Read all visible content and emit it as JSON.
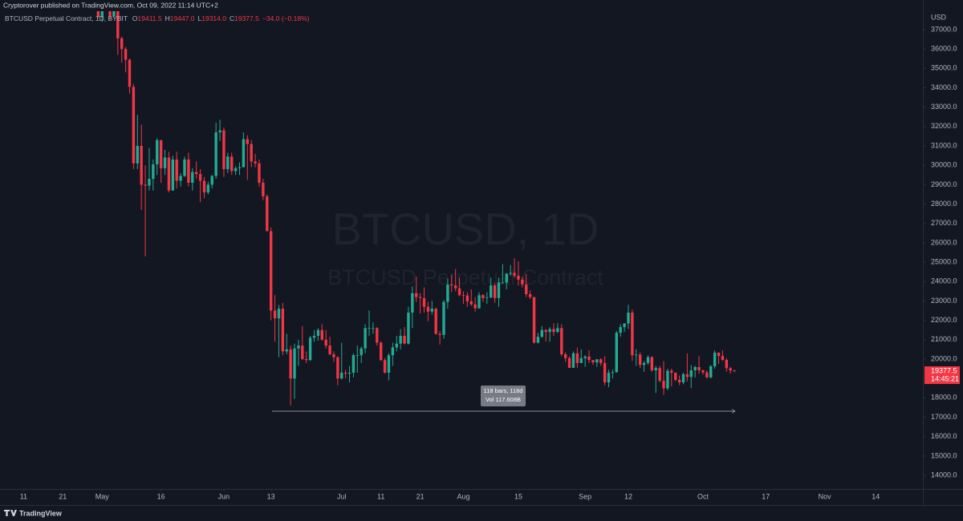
{
  "header": "Cryptorover published on TradingView.com, Oct 09, 2022 11:14 UTC+2",
  "footer": "TradingView",
  "chart_data": {
    "type": "candlestick",
    "legend": {
      "symbol": "BTCUSD Perpetual Contract, 1D, BYBIT",
      "o_label": "O",
      "o": "19411.5",
      "h_label": "H",
      "h": "19447.0",
      "l_label": "L",
      "l": "19314.0",
      "c_label": "C",
      "c": "19377.5",
      "change": "−34.0 (−0.18%)"
    },
    "watermark": [
      "BTCUSD, 1D",
      "BTCUSD Perpetual Contract"
    ],
    "currency": "USD",
    "price_time": "14:45:21",
    "measure": [
      "118 bars, 118d",
      "Vol 117.608B"
    ],
    "up_color": "#22ab94",
    "down_color": "#f23645",
    "grid": false,
    "xlim": [
      "2022-04-05",
      "2022-11-26"
    ],
    "ylim": [
      13300,
      37950
    ],
    "xticks": [
      {
        "value": "2022-04-11",
        "label": "11"
      },
      {
        "value": "2022-04-21",
        "label": "21"
      },
      {
        "value": "2022-05-01",
        "label": "May"
      },
      {
        "value": "2022-05-16",
        "label": "16"
      },
      {
        "value": "2022-06-01",
        "label": "Jun"
      },
      {
        "value": "2022-06-13",
        "label": "13"
      },
      {
        "value": "2022-07-01",
        "label": "Jul"
      },
      {
        "value": "2022-07-11",
        "label": "11"
      },
      {
        "value": "2022-07-21",
        "label": "21"
      },
      {
        "value": "2022-08-01",
        "label": "Aug"
      },
      {
        "value": "2022-08-15",
        "label": "15"
      },
      {
        "value": "2022-09-01",
        "label": "Sep"
      },
      {
        "value": "2022-09-12",
        "label": "12"
      },
      {
        "value": "2022-10-01",
        "label": "Oct"
      },
      {
        "value": "2022-10-17",
        "label": "17"
      },
      {
        "value": "2022-11-01",
        "label": "Nov"
      },
      {
        "value": "2022-11-14",
        "label": "14"
      }
    ],
    "yticks": [
      {
        "value": 14000,
        "label": "14000.0"
      },
      {
        "value": 15000,
        "label": "15000.0"
      },
      {
        "value": 16000,
        "label": "16000.0"
      },
      {
        "value": 17000,
        "label": "17000.0"
      },
      {
        "value": 18000,
        "label": "18000.0"
      },
      {
        "value": 19000,
        "label": "19000.0"
      },
      {
        "value": 20000,
        "label": "20000.0"
      },
      {
        "value": 21000,
        "label": "21000.0"
      },
      {
        "value": 22000,
        "label": "22000.0"
      },
      {
        "value": 23000,
        "label": "23000.0"
      },
      {
        "value": 24000,
        "label": "24000.0"
      },
      {
        "value": 25000,
        "label": "25000.0"
      },
      {
        "value": 26000,
        "label": "26000.0"
      },
      {
        "value": 27000,
        "label": "27000.0"
      },
      {
        "value": 28000,
        "label": "28000.0"
      },
      {
        "value": 29000,
        "label": "29000.0"
      },
      {
        "value": 30000,
        "label": "30000.0"
      },
      {
        "value": 31000,
        "label": "31000.0"
      },
      {
        "value": 32000,
        "label": "32000.0"
      },
      {
        "value": 33000,
        "label": "33000.0"
      },
      {
        "value": 34000,
        "label": "34000.0"
      },
      {
        "value": 35000,
        "label": "35000.0"
      },
      {
        "value": 36000,
        "label": "36000.0"
      },
      {
        "value": 37000,
        "label": "37000.0"
      }
    ],
    "x": [
      "2022-04-28",
      "2022-04-29",
      "2022-04-30",
      "2022-05-01",
      "2022-05-02",
      "2022-05-03",
      "2022-05-04",
      "2022-05-05",
      "2022-05-06",
      "2022-05-07",
      "2022-05-08",
      "2022-05-09",
      "2022-05-10",
      "2022-05-11",
      "2022-05-12",
      "2022-05-13",
      "2022-05-14",
      "2022-05-15",
      "2022-05-16",
      "2022-05-17",
      "2022-05-18",
      "2022-05-19",
      "2022-05-20",
      "2022-05-21",
      "2022-05-22",
      "2022-05-23",
      "2022-05-24",
      "2022-05-25",
      "2022-05-26",
      "2022-05-27",
      "2022-05-28",
      "2022-05-29",
      "2022-05-30",
      "2022-05-31",
      "2022-06-01",
      "2022-06-02",
      "2022-06-03",
      "2022-06-04",
      "2022-06-05",
      "2022-06-06",
      "2022-06-07",
      "2022-06-08",
      "2022-06-09",
      "2022-06-10",
      "2022-06-11",
      "2022-06-12",
      "2022-06-13",
      "2022-06-14",
      "2022-06-15",
      "2022-06-16",
      "2022-06-17",
      "2022-06-18",
      "2022-06-19",
      "2022-06-20",
      "2022-06-21",
      "2022-06-22",
      "2022-06-23",
      "2022-06-24",
      "2022-06-25",
      "2022-06-26",
      "2022-06-27",
      "2022-06-28",
      "2022-06-29",
      "2022-06-30",
      "2022-07-01",
      "2022-07-02",
      "2022-07-03",
      "2022-07-04",
      "2022-07-05",
      "2022-07-06",
      "2022-07-07",
      "2022-07-08",
      "2022-07-09",
      "2022-07-10",
      "2022-07-11",
      "2022-07-12",
      "2022-07-13",
      "2022-07-14",
      "2022-07-15",
      "2022-07-16",
      "2022-07-17",
      "2022-07-18",
      "2022-07-19",
      "2022-07-20",
      "2022-07-21",
      "2022-07-22",
      "2022-07-23",
      "2022-07-24",
      "2022-07-25",
      "2022-07-26",
      "2022-07-27",
      "2022-07-28",
      "2022-07-29",
      "2022-07-30",
      "2022-07-31",
      "2022-08-01",
      "2022-08-02",
      "2022-08-03",
      "2022-08-04",
      "2022-08-05",
      "2022-08-06",
      "2022-08-07",
      "2022-08-08",
      "2022-08-09",
      "2022-08-10",
      "2022-08-11",
      "2022-08-12",
      "2022-08-13",
      "2022-08-14",
      "2022-08-15",
      "2022-08-16",
      "2022-08-17",
      "2022-08-18",
      "2022-08-19",
      "2022-08-20",
      "2022-08-21",
      "2022-08-22",
      "2022-08-23",
      "2022-08-24",
      "2022-08-25",
      "2022-08-26",
      "2022-08-27",
      "2022-08-28",
      "2022-08-29",
      "2022-08-30",
      "2022-08-31",
      "2022-09-01",
      "2022-09-02",
      "2022-09-03",
      "2022-09-04",
      "2022-09-05",
      "2022-09-06",
      "2022-09-07",
      "2022-09-08",
      "2022-09-09",
      "2022-09-10",
      "2022-09-11",
      "2022-09-12",
      "2022-09-13",
      "2022-09-14",
      "2022-09-15",
      "2022-09-16",
      "2022-09-17",
      "2022-09-18",
      "2022-09-19",
      "2022-09-20",
      "2022-09-21",
      "2022-09-22",
      "2022-09-23",
      "2022-09-24",
      "2022-09-25",
      "2022-09-26",
      "2022-09-27",
      "2022-09-28",
      "2022-09-29",
      "2022-09-30",
      "2022-10-01",
      "2022-10-02",
      "2022-10-03",
      "2022-10-04",
      "2022-10-05",
      "2022-10-06",
      "2022-10-07",
      "2022-10-08",
      "2022-10-09"
    ],
    "open": [
      39200,
      39700,
      38600,
      37650,
      38450,
      38500,
      37700,
      39700,
      36550,
      36000,
      35450,
      34050,
      30100,
      31000,
      29000,
      28950,
      29300,
      30050,
      31300,
      29850,
      30400,
      28700,
      30300,
      29200,
      29450,
      30300,
      29100,
      29650,
      29550,
      29200,
      28600,
      29000,
      29450,
      31700,
      31800,
      29800,
      30450,
      29700,
      29850,
      29900,
      31350,
      31100,
      30200,
      30100,
      29100,
      28400,
      26600,
      22500,
      22100,
      22600,
      20400,
      20500,
      19000,
      20550,
      20700,
      20000,
      19950,
      21100,
      21200,
      21500,
      21000,
      20700,
      20250,
      20100,
      19000,
      19300,
      19250,
      19300,
      20200,
      20200,
      20550,
      21600,
      21600,
      21600,
      20850,
      19950,
      19300,
      20200,
      20600,
      20800,
      21200,
      20800,
      22400,
      23400,
      23200,
      23150,
      22700,
      22450,
      22600,
      21300,
      21250,
      22950,
      23850,
      23800,
      23650,
      23300,
      23280,
      22980,
      22820,
      22620,
      23300,
      23150,
      23180,
      23800,
      23150,
      23950,
      23950,
      24400,
      24450,
      24300,
      24100,
      23850,
      23350,
      23200,
      20850,
      21150,
      21500,
      21400,
      21550,
      21400,
      21600,
      20250,
      20050,
      19550,
      20300,
      19800,
      20050,
      20130,
      19950,
      19830,
      19990,
      19800,
      18800,
      19290,
      19320,
      21360,
      21650,
      21840,
      22400,
      20200,
      20230,
      19700,
      19800,
      20100,
      19420,
      19540,
      18880,
      18490,
      19400,
      19300,
      18930,
      18800,
      19220,
      19080,
      19420,
      19590,
      19420,
      19310,
      19060,
      19630,
      20330,
      20160,
      19960,
      19530,
      19411.5
    ],
    "high": [
      40300,
      39900,
      38800,
      38700,
      39100,
      38600,
      40000,
      39800,
      36650,
      36100,
      35500,
      34200,
      32600,
      32100,
      30000,
      30900,
      30300,
      31400,
      31300,
      30800,
      30700,
      30500,
      30700,
      29600,
      30450,
      30650,
      29850,
      30200,
      29800,
      29400,
      29150,
      29500,
      32200,
      32350,
      31950,
      30650,
      30650,
      29950,
      30150,
      31700,
      31550,
      31300,
      30600,
      30300,
      29300,
      28500,
      26800,
      23300,
      22800,
      22900,
      21300,
      20700,
      20800,
      21000,
      21700,
      20400,
      21200,
      21500,
      21600,
      21800,
      21500,
      21150,
      20400,
      20150,
      20850,
      19450,
      19650,
      20300,
      20700,
      20650,
      21800,
      22500,
      21900,
      21650,
      20900,
      20050,
      20300,
      20850,
      21200,
      21550,
      21650,
      22700,
      23750,
      24250,
      23400,
      23700,
      22950,
      23000,
      22650,
      21450,
      23050,
      24150,
      24350,
      24650,
      24200,
      23500,
      23450,
      23600,
      23200,
      23450,
      23350,
      23450,
      24200,
      23900,
      24200,
      24900,
      24450,
      24850,
      25200,
      25050,
      24250,
      24400,
      23550,
      23200,
      21350,
      21700,
      21550,
      21650,
      21850,
      21850,
      21800,
      20350,
      20150,
      20400,
      20600,
      20500,
      20200,
      20450,
      19950,
      20000,
      20050,
      20150,
      19450,
      19450,
      21450,
      21800,
      21850,
      22800,
      22550,
      20500,
      20350,
      19900,
      20200,
      20150,
      19650,
      19650,
      19900,
      19500,
      19500,
      19300,
      19150,
      19300,
      20300,
      19700,
      19650,
      20150,
      19450,
      19400,
      19700,
      20450,
      20350,
      20450,
      20050,
      19600,
      19447
    ],
    "low": [
      38900,
      38200,
      37600,
      37400,
      38100,
      37500,
      37600,
      35700,
      35300,
      34800,
      33700,
      29800,
      29800,
      27700,
      25300,
      28700,
      28700,
      29500,
      29100,
      29500,
      28600,
      28700,
      28800,
      28900,
      29400,
      28900,
      28700,
      29300,
      28100,
      28300,
      28500,
      28800,
      29300,
      31250,
      29400,
      29600,
      29500,
      29500,
      29500,
      29900,
      29250,
      29900,
      29900,
      28900,
      28200,
      26600,
      22000,
      20900,
      20100,
      20200,
      20250,
      17600,
      17950,
      19650,
      19950,
      19800,
      19900,
      20900,
      20950,
      20950,
      20550,
      20200,
      19850,
      18650,
      18950,
      19000,
      18800,
      19050,
      19300,
      19800,
      20300,
      21200,
      21300,
      20700,
      19900,
      19250,
      18900,
      19650,
      20400,
      20500,
      20750,
      20750,
      21600,
      22950,
      22350,
      22400,
      21950,
      22300,
      21250,
      20750,
      21050,
      22600,
      23450,
      23500,
      23250,
      22850,
      22700,
      22750,
      22450,
      22600,
      22950,
      22850,
      23150,
      22900,
      22700,
      23900,
      23600,
      24300,
      24200,
      23800,
      23700,
      23200,
      23100,
      20800,
      20800,
      21100,
      20900,
      20900,
      21200,
      21350,
      20150,
      19850,
      19550,
      19550,
      19550,
      19800,
      19600,
      19800,
      19700,
      19600,
      19650,
      18650,
      18550,
      19000,
      19300,
      21150,
      21400,
      21550,
      19900,
      19650,
      19550,
      19350,
      19700,
      19350,
      18250,
      18800,
      18150,
      18400,
      18600,
      18850,
      18650,
      18700,
      18850,
      18500,
      19050,
      19250,
      19200,
      19000,
      19000,
      19500,
      19750,
      19900,
      19350,
      19250,
      19314
    ],
    "close": [
      39700,
      38600,
      37650,
      38450,
      38500,
      37700,
      39700,
      36550,
      36000,
      35450,
      34050,
      30100,
      31000,
      29000,
      28950,
      29300,
      30050,
      31300,
      29850,
      30400,
      28700,
      30300,
      29200,
      29450,
      30300,
      29100,
      29650,
      29550,
      29200,
      28600,
      29000,
      29450,
      31700,
      31800,
      29800,
      30450,
      29700,
      29850,
      29900,
      31350,
      31100,
      30200,
      30100,
      29100,
      28400,
      26600,
      22500,
      22100,
      22600,
      20400,
      20500,
      19000,
      20550,
      20700,
      20000,
      19950,
      21100,
      21200,
      21500,
      21000,
      20700,
      20250,
      20100,
      19000,
      19300,
      19250,
      19300,
      20200,
      20200,
      20550,
      21600,
      21600,
      21600,
      20850,
      19950,
      19300,
      20200,
      20600,
      20800,
      21200,
      20800,
      22400,
      23400,
      23200,
      23150,
      22700,
      22450,
      22600,
      21300,
      21250,
      22950,
      23850,
      23800,
      23650,
      23300,
      23280,
      22980,
      22820,
      22620,
      23300,
      23150,
      23180,
      23800,
      23150,
      23950,
      23950,
      24400,
      24450,
      24300,
      24100,
      23850,
      23350,
      23200,
      20850,
      21150,
      21500,
      21400,
      21550,
      21400,
      21600,
      20250,
      20050,
      19550,
      20300,
      19800,
      20050,
      20130,
      19950,
      19830,
      19990,
      19800,
      18800,
      19290,
      19320,
      21360,
      21650,
      21840,
      22400,
      20200,
      20230,
      19700,
      19800,
      20100,
      19420,
      19540,
      18880,
      18490,
      19400,
      19300,
      18930,
      18800,
      19220,
      19080,
      19420,
      19590,
      19420,
      19310,
      19060,
      19630,
      20330,
      20160,
      19960,
      19530,
      19410,
      19377.5
    ]
  }
}
